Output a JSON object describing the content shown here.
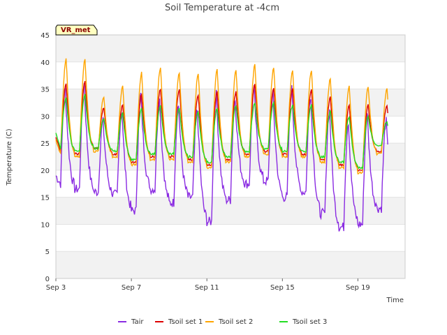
{
  "chart_data": {
    "type": "line",
    "title": "Soil Temperature at -4cm",
    "xlabel": "Time",
    "ylabel": "Temperature (C)",
    "station_label": "VR_met",
    "xlim_days": [
      3,
      21.5
    ],
    "ylim": [
      0,
      45
    ],
    "yticks": [
      0,
      5,
      10,
      15,
      20,
      25,
      30,
      35,
      40,
      45
    ],
    "xticks": [
      {
        "day": 3,
        "label": "Sep 3"
      },
      {
        "day": 7,
        "label": "Sep 7"
      },
      {
        "day": 11,
        "label": "Sep 11"
      },
      {
        "day": 15,
        "label": "Sep 15"
      },
      {
        "day": 19,
        "label": "Sep 19"
      }
    ],
    "grid": true,
    "legend_position": "bottom",
    "days": [
      3,
      4,
      5,
      6,
      7,
      8,
      9,
      10,
      11,
      12,
      13,
      14,
      15,
      16,
      17,
      18,
      19,
      20
    ],
    "series": [
      {
        "name": "Tair",
        "color": "#8a2be2",
        "max": [
          35,
          36,
          29,
          31,
          34,
          33,
          32,
          31,
          34,
          33,
          35,
          34,
          35,
          34,
          31,
          29,
          30,
          29
        ],
        "min": [
          17.5,
          16.5,
          16,
          15.5,
          12.5,
          16.5,
          14,
          15,
          10.5,
          14.5,
          17.5,
          18,
          15,
          16,
          12,
          9.5,
          10,
          13
        ],
        "first": 19
      },
      {
        "name": "Tsoil set 1",
        "color": "#dd0000",
        "max": [
          36,
          36.5,
          31.5,
          32,
          34,
          35,
          35,
          34,
          34.5,
          34.5,
          36,
          35,
          35,
          35,
          33.5,
          32,
          32,
          32
        ],
        "min": [
          23.5,
          23,
          24,
          23,
          21.5,
          22.5,
          22.5,
          22,
          21,
          22,
          23,
          23.5,
          23,
          23,
          22,
          21,
          20,
          23.5
        ],
        "first": 26
      },
      {
        "name": "Tsoil set 2",
        "color": "#ffa500",
        "max": [
          40.5,
          40.5,
          33.5,
          35.5,
          38,
          39,
          38,
          38,
          38.5,
          38.5,
          39.5,
          39,
          38.5,
          38.5,
          37,
          35.5,
          35.5,
          35
        ],
        "min": [
          23,
          22.5,
          23.5,
          22.5,
          21,
          22,
          22,
          21.5,
          20.5,
          21.5,
          22.5,
          23,
          22.5,
          22.5,
          21.5,
          20.5,
          19.5,
          23
        ],
        "first": 25.5
      },
      {
        "name": "Tsoil set 3",
        "color": "#22dd22",
        "max": [
          33.5,
          34,
          29.5,
          30.5,
          31.5,
          32,
          31.5,
          31,
          31.5,
          32,
          32.5,
          32.5,
          32,
          32,
          31,
          30,
          30,
          29
        ],
        "min": [
          24,
          23.5,
          24,
          23.5,
          22,
          23,
          23,
          22.5,
          21.5,
          22.5,
          23.5,
          24,
          23.5,
          23.5,
          22.5,
          21.5,
          20.5,
          24.5
        ],
        "first": 27
      }
    ]
  }
}
